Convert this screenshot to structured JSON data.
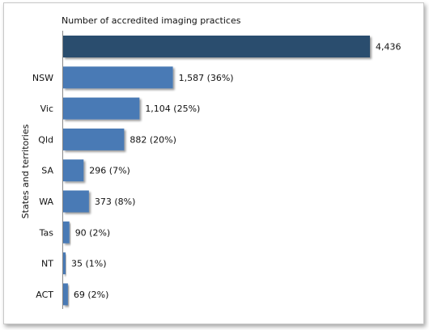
{
  "chart_data": {
    "type": "bar",
    "orientation": "horizontal",
    "title": "Number  of accredited imaging practices",
    "ylabel": "States and territories",
    "categories": [
      "",
      "NSW",
      "Vic",
      "Qld",
      "SA",
      "WA",
      "Tas",
      "NT",
      "ACT"
    ],
    "values": [
      4436,
      1587,
      1104,
      882,
      296,
      373,
      90,
      35,
      69
    ],
    "data_labels": [
      "4,436",
      "1,587 (36%)",
      "1,104 (25%)",
      "882 (20%)",
      "296 (7%)",
      "373 (8%)",
      "90 (2%)",
      "35 (1%)",
      "69 (2%)"
    ],
    "xlim": [
      0,
      4436
    ],
    "grid": false,
    "legend": "none",
    "colors": {
      "total": "#2a4d6e",
      "bar": "#4a7ab5",
      "axis": "#888888"
    }
  }
}
